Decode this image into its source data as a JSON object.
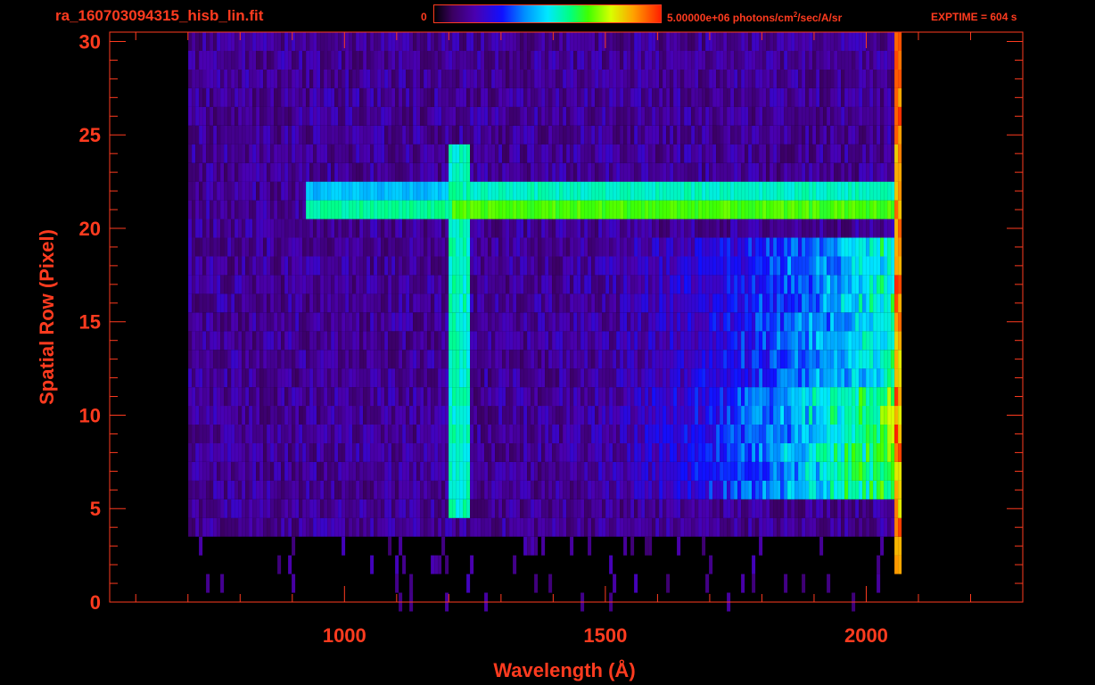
{
  "header": {
    "filename": "ra_160703094315_hisb_lin.fit",
    "colorbar_min": "0",
    "colorbar_max_pre": "5.00000e+06 photons/cm",
    "colorbar_max_sup": "2",
    "colorbar_max_post": "/sec/A/sr",
    "exptime": "EXPTIME = 604 s"
  },
  "colors": {
    "axis": "#ff3b1f",
    "background": "#000000"
  },
  "chart_data": {
    "type": "heatmap",
    "title": "",
    "xlabel": "Wavelength (Å)",
    "ylabel": "Spatial Row (Pixel)",
    "xlim": [
      550,
      2300
    ],
    "ylim": [
      0,
      30.5
    ],
    "x_ticks": [
      1000,
      1500,
      2000
    ],
    "y_ticks": [
      0,
      5,
      10,
      15,
      20,
      25,
      30
    ],
    "x_tick_labels": [
      "1000",
      "1500",
      "2000"
    ],
    "y_tick_labels": [
      "0",
      "5",
      "10",
      "15",
      "20",
      "25",
      "30"
    ],
    "colorscale": "rainbow",
    "zlim": [
      0,
      5000000
    ],
    "spectrum_range": [
      700,
      2060
    ],
    "features": [
      {
        "kind": "emission-line",
        "wavelength": 1216,
        "rows": [
          5,
          24
        ]
      },
      {
        "kind": "bright-row",
        "row": 21,
        "wavelength_range": [
          920,
          2060
        ]
      },
      {
        "kind": "bright-row",
        "row": 22,
        "wavelength_range": [
          920,
          2060
        ]
      },
      {
        "kind": "continuum",
        "rows": [
          6,
          19
        ],
        "rising_to": 2060
      }
    ]
  }
}
